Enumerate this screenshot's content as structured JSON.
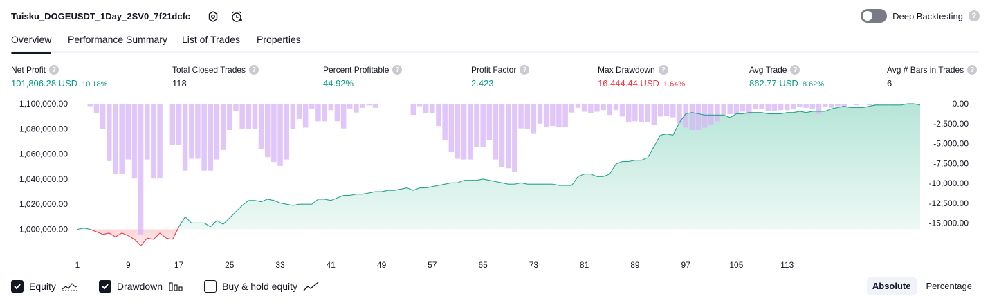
{
  "header": {
    "title": "Tuisku_DOGEUSDT_1Day_2SV0_7f21dcfc",
    "deep_backtesting_label": "Deep Backtesting",
    "deep_backtesting_on": false,
    "help_glyph": "?"
  },
  "tabs": [
    {
      "label": "Overview",
      "active": true
    },
    {
      "label": "Performance Summary",
      "active": false
    },
    {
      "label": "List of Trades",
      "active": false
    },
    {
      "label": "Properties",
      "active": false
    }
  ],
  "stats": [
    {
      "label": "Net Profit",
      "value": "101,806.28 USD",
      "pct": "10.18%",
      "tone": "pos"
    },
    {
      "label": "Total Closed Trades",
      "value": "118",
      "pct": "",
      "tone": "neu"
    },
    {
      "label": "Percent Profitable",
      "value": "44.92%",
      "pct": "",
      "tone": "pos"
    },
    {
      "label": "Profit Factor",
      "value": "2.423",
      "pct": "",
      "tone": "pos"
    },
    {
      "label": "Max Drawdown",
      "value": "16,444.44 USD",
      "pct": "1.64%",
      "tone": "neg"
    },
    {
      "label": "Avg Trade",
      "value": "862.77 USD",
      "pct": "8.62%",
      "tone": "pos"
    },
    {
      "label": "Avg # Bars in Trades",
      "value": "6",
      "pct": "",
      "tone": "neu"
    }
  ],
  "colors": {
    "positive": "#089981",
    "negative": "#f23645",
    "drawdown_bar": "#d8b6f7",
    "equity_line": "#22a38a",
    "equity_fill_top": "#b6e5d7",
    "equity_fill_bottom": "#eef9f6"
  },
  "chart_data": {
    "type": "area",
    "left_axis_ticks": [
      "1,100,000.00",
      "1,080,000.00",
      "1,060,000.00",
      "1,040,000.00",
      "1,020,000.00",
      "1,000,000.00"
    ],
    "right_axis_ticks": [
      "0.00",
      "-2,500.00",
      "-5,000.00",
      "-7,500.00",
      "-10,000.00",
      "-12,500.00",
      "-15,000.00"
    ],
    "x_ticks": [
      "1",
      "9",
      "17",
      "25",
      "33",
      "41",
      "49",
      "57",
      "65",
      "73",
      "81",
      "89",
      "97",
      "105",
      "113"
    ],
    "equity_ylim": [
      990000,
      1110000
    ],
    "drawdown_ylim": [
      -16500,
      0
    ],
    "series": [
      {
        "name": "Equity",
        "kind": "line",
        "values": [
          1000000,
          1001000,
          1000000,
          998000,
          996000,
          997000,
          994000,
          997000,
          995000,
          992000,
          987000,
          993000,
          992000,
          997000,
          993000,
          992000,
          1002000,
          1010000,
          1005000,
          1005000,
          1005000,
          1002000,
          1007000,
          1004000,
          1009000,
          1014000,
          1019000,
          1023000,
          1023000,
          1022000,
          1024000,
          1023000,
          1021000,
          1020000,
          1019000,
          1020000,
          1020000,
          1020000,
          1024000,
          1024000,
          1023000,
          1025000,
          1027000,
          1027000,
          1028000,
          1028000,
          1029000,
          1030000,
          1030000,
          1031000,
          1031000,
          1032000,
          1033000,
          1031000,
          1033000,
          1033000,
          1034000,
          1035000,
          1036000,
          1037000,
          1037000,
          1039000,
          1039000,
          1039000,
          1040000,
          1039000,
          1038000,
          1037000,
          1036000,
          1036000,
          1037000,
          1036000,
          1036000,
          1036000,
          1036000,
          1036000,
          1035000,
          1035000,
          1035000,
          1042000,
          1044000,
          1044000,
          1042000,
          1042000,
          1044000,
          1052000,
          1054000,
          1054000,
          1055000,
          1055000,
          1057000,
          1066000,
          1075000,
          1076000,
          1075000,
          1085000,
          1092000,
          1093000,
          1092000,
          1091000,
          1091000,
          1091000,
          1091000,
          1089000,
          1092000,
          1092000,
          1093000,
          1093000,
          1093000,
          1092000,
          1092000,
          1092000,
          1093000,
          1093000,
          1094000,
          1093000,
          1094000,
          1094000,
          1094000,
          1096000,
          1097000,
          1098000,
          1097000,
          1097000,
          1097000,
          1098000,
          1099000,
          1099000,
          1099000,
          1099000,
          1099000,
          1100000,
          1100000,
          1099000
        ]
      },
      {
        "name": "Drawdown",
        "kind": "bar",
        "values": [
          0,
          0,
          -300,
          -1200,
          -3200,
          -7200,
          -8800,
          -8800,
          -7000,
          -9400,
          -16400,
          -7000,
          -9400,
          -9400,
          0,
          -5200,
          -5200,
          -8400,
          -6900,
          -6900,
          -8400,
          -8400,
          -7000,
          -5800,
          -3300,
          -900,
          -3200,
          -3200,
          -3200,
          -5700,
          -6700,
          -7300,
          -7800,
          -7000,
          -3200,
          -1900,
          -3000,
          -600,
          -2200,
          -2200,
          -800,
          -2200,
          -3100,
          -600,
          -1100,
          -500,
          -200,
          -500,
          0,
          0,
          0,
          0,
          0,
          -1400,
          -300,
          -1200,
          -1200,
          -2800,
          -4600,
          -6000,
          -6900,
          -7000,
          -7000,
          -5400,
          -5400,
          -4600,
          -7000,
          -7900,
          -8100,
          -8600,
          -3100,
          -3200,
          -3700,
          -2500,
          -2900,
          -2800,
          -2900,
          -2900,
          -1100,
          -500,
          -1000,
          -1200,
          -1000,
          -800,
          -1400,
          -800,
          -1600,
          -2300,
          -2200,
          -2300,
          -2300,
          -2700,
          -1600,
          -1500,
          -1700,
          -2500,
          -3000,
          -3300,
          -3300,
          -3000,
          -2600,
          -2200,
          -1400,
          -1300,
          -1300,
          -1000,
          -1300,
          -700,
          -700,
          -900,
          -900,
          -800,
          -800,
          -700,
          -400,
          -500,
          -700,
          -1300,
          -400,
          -500,
          -300,
          -400,
          0,
          -200,
          -100,
          -200,
          -200,
          0
        ]
      }
    ]
  },
  "legend": [
    {
      "label": "Equity",
      "checked": true,
      "icon": "equity-line-icon"
    },
    {
      "label": "Drawdown",
      "checked": true,
      "icon": "drawdown-bars-icon"
    },
    {
      "label": "Buy & hold equity",
      "checked": false,
      "icon": "buy-hold-line-icon"
    }
  ],
  "view_modes": [
    {
      "label": "Absolute",
      "active": true
    },
    {
      "label": "Percentage",
      "active": false
    }
  ]
}
